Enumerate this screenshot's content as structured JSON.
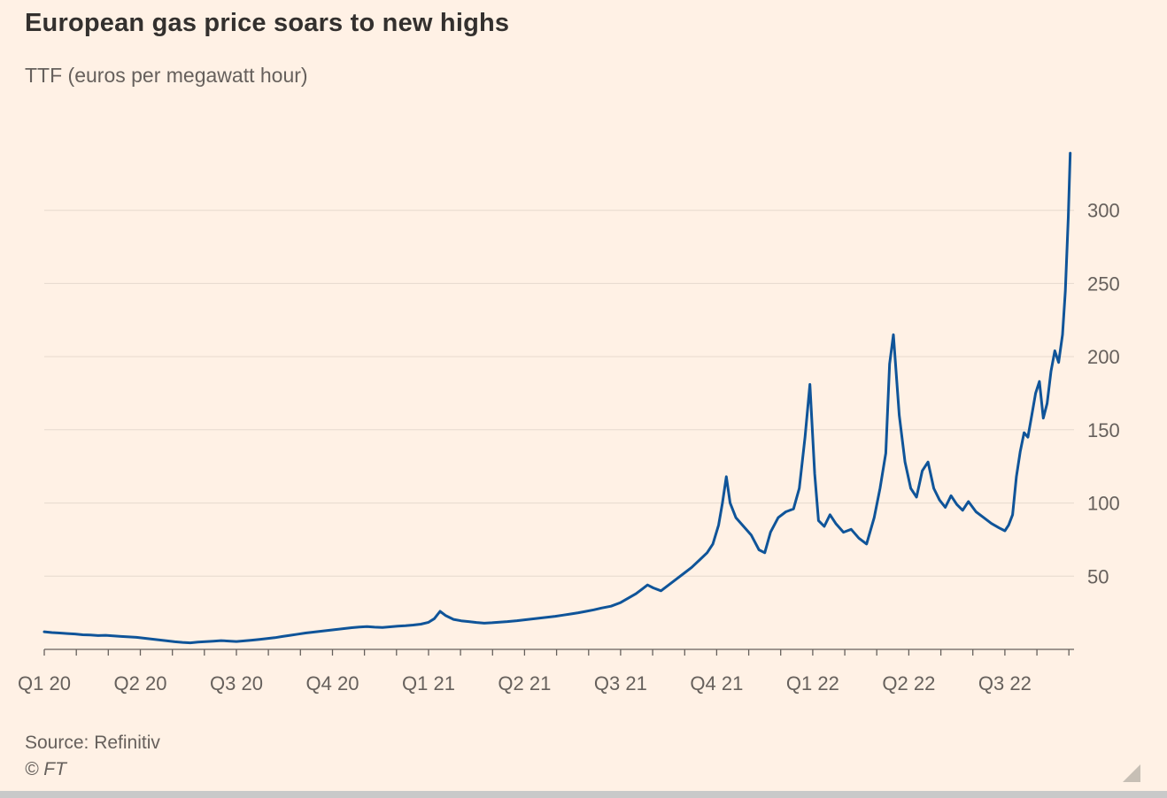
{
  "header": {
    "title": "European gas price soars to new highs",
    "subtitle": "TTF (euros per megawatt hour)"
  },
  "footer": {
    "source": "Source: Refinitiv",
    "copyright": "© FT"
  },
  "colors": {
    "background": "#fff1e5",
    "title_text": "#33302e",
    "muted_text": "#66605c",
    "grid": "#e6d9ce",
    "axis": "#66605c",
    "line": "#0f5499"
  },
  "chart_data": {
    "type": "line",
    "title": "European gas price soars to new highs",
    "subtitle": "TTF (euros per megawatt hour)",
    "source": "Source: Refinitiv",
    "grid": "horizontal",
    "legend": "none",
    "x_axis": {
      "tick_labels": [
        "Q1 20",
        "Q2 20",
        "Q3 20",
        "Q4 20",
        "Q1 21",
        "Q2 21",
        "Q3 21",
        "Q4 21",
        "Q1 22",
        "Q2 22",
        "Q3 22"
      ],
      "tick_positions": [
        0,
        1,
        2,
        3,
        4,
        5,
        6,
        7,
        8,
        9,
        10
      ],
      "minor_tick_interval_quarters": 0.3333,
      "range": [
        0,
        10.72
      ],
      "unit": "quarters since Q1 2020"
    },
    "y_axis": {
      "ticks": [
        50,
        100,
        150,
        200,
        250,
        300
      ],
      "range": [
        0,
        356
      ],
      "label_side": "right",
      "unit": "euros per megawatt hour"
    },
    "series": [
      {
        "name": "TTF gas price",
        "color": "#0f5499",
        "points": [
          [
            0,
            12
          ],
          [
            0.08,
            11.5
          ],
          [
            0.16,
            11.2
          ],
          [
            0.24,
            10.8
          ],
          [
            0.32,
            10.5
          ],
          [
            0.4,
            10
          ],
          [
            0.48,
            9.8
          ],
          [
            0.56,
            9.4
          ],
          [
            0.64,
            9.6
          ],
          [
            0.72,
            9.2
          ],
          [
            0.8,
            8.8
          ],
          [
            0.88,
            8.5
          ],
          [
            0.96,
            8.2
          ],
          [
            1.04,
            7.6
          ],
          [
            1.12,
            7
          ],
          [
            1.2,
            6.4
          ],
          [
            1.28,
            5.8
          ],
          [
            1.36,
            5.2
          ],
          [
            1.44,
            4.8
          ],
          [
            1.52,
            4.5
          ],
          [
            1.6,
            5
          ],
          [
            1.68,
            5.3
          ],
          [
            1.76,
            5.6
          ],
          [
            1.84,
            6
          ],
          [
            1.92,
            5.7
          ],
          [
            2,
            5.4
          ],
          [
            2.08,
            5.8
          ],
          [
            2.16,
            6.3
          ],
          [
            2.24,
            6.8
          ],
          [
            2.32,
            7.4
          ],
          [
            2.4,
            8
          ],
          [
            2.48,
            8.8
          ],
          [
            2.56,
            9.6
          ],
          [
            2.64,
            10.4
          ],
          [
            2.72,
            11.2
          ],
          [
            2.8,
            11.8
          ],
          [
            2.88,
            12.4
          ],
          [
            2.96,
            13
          ],
          [
            3.04,
            13.6
          ],
          [
            3.12,
            14.2
          ],
          [
            3.2,
            14.8
          ],
          [
            3.28,
            15.3
          ],
          [
            3.36,
            15.6
          ],
          [
            3.44,
            15.2
          ],
          [
            3.52,
            15
          ],
          [
            3.6,
            15.4
          ],
          [
            3.68,
            15.9
          ],
          [
            3.76,
            16.2
          ],
          [
            3.84,
            16.6
          ],
          [
            3.92,
            17.2
          ],
          [
            4,
            18.5
          ],
          [
            4.06,
            21
          ],
          [
            4.12,
            26
          ],
          [
            4.18,
            23
          ],
          [
            4.26,
            20.5
          ],
          [
            4.34,
            19.5
          ],
          [
            4.42,
            19
          ],
          [
            4.5,
            18.4
          ],
          [
            4.58,
            17.9
          ],
          [
            4.66,
            18.2
          ],
          [
            4.74,
            18.6
          ],
          [
            4.82,
            19
          ],
          [
            4.92,
            19.6
          ],
          [
            5,
            20.2
          ],
          [
            5.08,
            20.8
          ],
          [
            5.16,
            21.4
          ],
          [
            5.24,
            22
          ],
          [
            5.32,
            22.6
          ],
          [
            5.4,
            23.4
          ],
          [
            5.48,
            24.2
          ],
          [
            5.56,
            25
          ],
          [
            5.64,
            26
          ],
          [
            5.72,
            27
          ],
          [
            5.8,
            28.2
          ],
          [
            5.9,
            29.5
          ],
          [
            6,
            32
          ],
          [
            6.08,
            35
          ],
          [
            6.16,
            38
          ],
          [
            6.22,
            41
          ],
          [
            6.28,
            44
          ],
          [
            6.34,
            42
          ],
          [
            6.42,
            40
          ],
          [
            6.5,
            44
          ],
          [
            6.58,
            48
          ],
          [
            6.66,
            52
          ],
          [
            6.74,
            56
          ],
          [
            6.82,
            61
          ],
          [
            6.9,
            66
          ],
          [
            6.96,
            72
          ],
          [
            7.02,
            85
          ],
          [
            7.06,
            100
          ],
          [
            7.1,
            118
          ],
          [
            7.14,
            100
          ],
          [
            7.2,
            90
          ],
          [
            7.28,
            84
          ],
          [
            7.36,
            78
          ],
          [
            7.44,
            68
          ],
          [
            7.5,
            66
          ],
          [
            7.56,
            80
          ],
          [
            7.64,
            90
          ],
          [
            7.72,
            94
          ],
          [
            7.8,
            96
          ],
          [
            7.86,
            110
          ],
          [
            7.92,
            145
          ],
          [
            7.97,
            181
          ],
          [
            8.02,
            120
          ],
          [
            8.06,
            88
          ],
          [
            8.12,
            84
          ],
          [
            8.18,
            92
          ],
          [
            8.24,
            86
          ],
          [
            8.32,
            80
          ],
          [
            8.4,
            82
          ],
          [
            8.48,
            76
          ],
          [
            8.56,
            72
          ],
          [
            8.64,
            90
          ],
          [
            8.7,
            110
          ],
          [
            8.76,
            134
          ],
          [
            8.8,
            195
          ],
          [
            8.84,
            215
          ],
          [
            8.9,
            160
          ],
          [
            8.96,
            128
          ],
          [
            9.02,
            110
          ],
          [
            9.08,
            104
          ],
          [
            9.14,
            122
          ],
          [
            9.2,
            128
          ],
          [
            9.26,
            110
          ],
          [
            9.32,
            102
          ],
          [
            9.38,
            97
          ],
          [
            9.44,
            105
          ],
          [
            9.5,
            99
          ],
          [
            9.56,
            95
          ],
          [
            9.62,
            101
          ],
          [
            9.7,
            94
          ],
          [
            9.78,
            90
          ],
          [
            9.86,
            86
          ],
          [
            9.94,
            83
          ],
          [
            10,
            81
          ],
          [
            10.04,
            85
          ],
          [
            10.08,
            92
          ],
          [
            10.12,
            118
          ],
          [
            10.16,
            135
          ],
          [
            10.2,
            148
          ],
          [
            10.24,
            145
          ],
          [
            10.28,
            160
          ],
          [
            10.32,
            175
          ],
          [
            10.36,
            183
          ],
          [
            10.4,
            158
          ],
          [
            10.44,
            168
          ],
          [
            10.48,
            190
          ],
          [
            10.52,
            204
          ],
          [
            10.56,
            196
          ],
          [
            10.6,
            215
          ],
          [
            10.63,
            245
          ],
          [
            10.66,
            295
          ],
          [
            10.68,
            339
          ]
        ]
      }
    ]
  }
}
